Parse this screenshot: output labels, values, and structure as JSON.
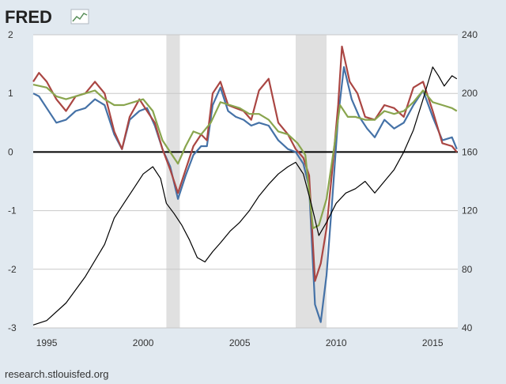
{
  "header": {
    "logo_text": "FRED"
  },
  "footer": {
    "source_text": "research.stlouisfed.org"
  },
  "colors": {
    "background": "#e1e9f0",
    "plot": "#ffffff",
    "gridline": "#c8c8c8",
    "recession": "#e0e0e0",
    "zero_line": "#000000"
  },
  "chart_data": {
    "type": "line",
    "title": "",
    "xlabel": "",
    "ylabel": "",
    "xlim": [
      1994.3,
      2016.3
    ],
    "ylim_left": [
      -3,
      2
    ],
    "ylim_right": [
      40,
      240
    ],
    "x_ticks": [
      1995,
      2000,
      2005,
      2010,
      2015
    ],
    "y_ticks_left": [
      2,
      1,
      0,
      -1,
      -2,
      -3
    ],
    "y_ticks_right": [
      240,
      200,
      160,
      120,
      80,
      40
    ],
    "grid": true,
    "recessions": [
      [
        2001.2,
        2001.9
      ],
      [
        2007.9,
        2009.5
      ]
    ],
    "series": [
      {
        "axis": "left",
        "color": "#4572a7",
        "points": [
          [
            1994.3,
            1.0
          ],
          [
            1994.6,
            0.95
          ],
          [
            1995,
            0.75
          ],
          [
            1995.5,
            0.5
          ],
          [
            1996,
            0.55
          ],
          [
            1996.5,
            0.7
          ],
          [
            1997,
            0.75
          ],
          [
            1997.5,
            0.9
          ],
          [
            1998,
            0.8
          ],
          [
            1998.5,
            0.3
          ],
          [
            1998.9,
            0.05
          ],
          [
            1999.3,
            0.55
          ],
          [
            1999.8,
            0.7
          ],
          [
            2000.2,
            0.75
          ],
          [
            2000.6,
            0.45
          ],
          [
            2001,
            0.05
          ],
          [
            2001.4,
            -0.25
          ],
          [
            2001.8,
            -0.8
          ],
          [
            2002.2,
            -0.4
          ],
          [
            2002.6,
            -0.05
          ],
          [
            2003,
            0.1
          ],
          [
            2003.3,
            0.1
          ],
          [
            2003.6,
            0.8
          ],
          [
            2004,
            1.1
          ],
          [
            2004.4,
            0.7
          ],
          [
            2004.8,
            0.6
          ],
          [
            2005.2,
            0.55
          ],
          [
            2005.6,
            0.45
          ],
          [
            2006,
            0.5
          ],
          [
            2006.5,
            0.45
          ],
          [
            2007,
            0.2
          ],
          [
            2007.5,
            0.05
          ],
          [
            2007.9,
            0.0
          ],
          [
            2008.3,
            -0.2
          ],
          [
            2008.6,
            -0.6
          ],
          [
            2008.9,
            -2.6
          ],
          [
            2009.2,
            -2.9
          ],
          [
            2009.5,
            -2.1
          ],
          [
            2009.8,
            -0.8
          ],
          [
            2010.1,
            0.6
          ],
          [
            2010.4,
            1.45
          ],
          [
            2010.8,
            0.9
          ],
          [
            2011.2,
            0.6
          ],
          [
            2011.6,
            0.4
          ],
          [
            2012,
            0.25
          ],
          [
            2012.5,
            0.55
          ],
          [
            2013,
            0.4
          ],
          [
            2013.5,
            0.5
          ],
          [
            2014,
            0.8
          ],
          [
            2014.5,
            1.05
          ],
          [
            2015,
            0.6
          ],
          [
            2015.5,
            0.2
          ],
          [
            2016,
            0.25
          ],
          [
            2016.25,
            0.05
          ]
        ]
      },
      {
        "axis": "left",
        "color": "#aa4643",
        "points": [
          [
            1994.3,
            1.2
          ],
          [
            1994.6,
            1.35
          ],
          [
            1995,
            1.2
          ],
          [
            1995.5,
            0.9
          ],
          [
            1996,
            0.7
          ],
          [
            1996.5,
            0.95
          ],
          [
            1997,
            1.0
          ],
          [
            1997.5,
            1.2
          ],
          [
            1998,
            1.0
          ],
          [
            1998.5,
            0.35
          ],
          [
            1998.9,
            0.05
          ],
          [
            1999.3,
            0.6
          ],
          [
            1999.8,
            0.9
          ],
          [
            2000.2,
            0.7
          ],
          [
            2000.6,
            0.5
          ],
          [
            2001,
            0.05
          ],
          [
            2001.4,
            -0.3
          ],
          [
            2001.8,
            -0.7
          ],
          [
            2002.2,
            -0.3
          ],
          [
            2002.6,
            0.1
          ],
          [
            2003,
            0.3
          ],
          [
            2003.3,
            0.2
          ],
          [
            2003.6,
            1.0
          ],
          [
            2004,
            1.2
          ],
          [
            2004.4,
            0.8
          ],
          [
            2004.8,
            0.75
          ],
          [
            2005.2,
            0.7
          ],
          [
            2005.6,
            0.55
          ],
          [
            2006,
            1.05
          ],
          [
            2006.5,
            1.25
          ],
          [
            2007,
            0.5
          ],
          [
            2007.5,
            0.3
          ],
          [
            2007.9,
            0.05
          ],
          [
            2008.3,
            -0.1
          ],
          [
            2008.6,
            -0.4
          ],
          [
            2008.9,
            -2.2
          ],
          [
            2009.2,
            -1.9
          ],
          [
            2009.5,
            -1.3
          ],
          [
            2009.8,
            -0.3
          ],
          [
            2010.1,
            0.8
          ],
          [
            2010.3,
            1.8
          ],
          [
            2010.7,
            1.2
          ],
          [
            2011.1,
            1.0
          ],
          [
            2011.5,
            0.6
          ],
          [
            2012,
            0.55
          ],
          [
            2012.5,
            0.8
          ],
          [
            2013,
            0.75
          ],
          [
            2013.5,
            0.6
          ],
          [
            2014,
            1.1
          ],
          [
            2014.5,
            1.2
          ],
          [
            2015,
            0.7
          ],
          [
            2015.5,
            0.15
          ],
          [
            2016,
            0.1
          ],
          [
            2016.25,
            0.0
          ]
        ]
      },
      {
        "axis": "left",
        "color": "#89a54e",
        "points": [
          [
            1994.3,
            1.15
          ],
          [
            1995,
            1.1
          ],
          [
            1995.5,
            0.95
          ],
          [
            1996,
            0.9
          ],
          [
            1996.5,
            0.95
          ],
          [
            1997,
            1.0
          ],
          [
            1997.5,
            1.05
          ],
          [
            1998,
            0.9
          ],
          [
            1998.5,
            0.8
          ],
          [
            1999,
            0.8
          ],
          [
            1999.5,
            0.85
          ],
          [
            2000,
            0.9
          ],
          [
            2000.5,
            0.7
          ],
          [
            2001,
            0.2
          ],
          [
            2001.5,
            -0.05
          ],
          [
            2001.8,
            -0.2
          ],
          [
            2002.2,
            0.1
          ],
          [
            2002.6,
            0.35
          ],
          [
            2003,
            0.3
          ],
          [
            2003.5,
            0.5
          ],
          [
            2004,
            0.85
          ],
          [
            2004.5,
            0.8
          ],
          [
            2005,
            0.75
          ],
          [
            2005.5,
            0.65
          ],
          [
            2006,
            0.65
          ],
          [
            2006.5,
            0.55
          ],
          [
            2007,
            0.35
          ],
          [
            2007.5,
            0.3
          ],
          [
            2008,
            0.15
          ],
          [
            2008.4,
            -0.05
          ],
          [
            2008.8,
            -1.3
          ],
          [
            2009.1,
            -1.25
          ],
          [
            2009.5,
            -0.8
          ],
          [
            2009.9,
            0.1
          ],
          [
            2010.2,
            0.8
          ],
          [
            2010.6,
            0.6
          ],
          [
            2011,
            0.6
          ],
          [
            2011.5,
            0.55
          ],
          [
            2012,
            0.55
          ],
          [
            2012.5,
            0.7
          ],
          [
            2013,
            0.65
          ],
          [
            2013.5,
            0.7
          ],
          [
            2014,
            0.85
          ],
          [
            2014.5,
            1.05
          ],
          [
            2015,
            0.85
          ],
          [
            2015.5,
            0.8
          ],
          [
            2016,
            0.75
          ],
          [
            2016.25,
            0.7
          ]
        ]
      },
      {
        "axis": "right",
        "color": "#000000",
        "points": [
          [
            1994.3,
            42
          ],
          [
            1995,
            45
          ],
          [
            1996,
            57
          ],
          [
            1997,
            75
          ],
          [
            1998,
            97
          ],
          [
            1998.5,
            115
          ],
          [
            1999,
            125
          ],
          [
            1999.5,
            135
          ],
          [
            2000,
            145
          ],
          [
            2000.5,
            150
          ],
          [
            2000.9,
            142
          ],
          [
            2001.2,
            125
          ],
          [
            2001.6,
            118
          ],
          [
            2002,
            110
          ],
          [
            2002.4,
            100
          ],
          [
            2002.8,
            88
          ],
          [
            2003.2,
            85
          ],
          [
            2003.6,
            92
          ],
          [
            2004,
            98
          ],
          [
            2004.5,
            106
          ],
          [
            2005,
            112
          ],
          [
            2005.5,
            120
          ],
          [
            2006,
            130
          ],
          [
            2006.5,
            138
          ],
          [
            2007,
            145
          ],
          [
            2007.5,
            150
          ],
          [
            2007.9,
            153
          ],
          [
            2008.3,
            145
          ],
          [
            2008.7,
            125
          ],
          [
            2009.1,
            103
          ],
          [
            2009.5,
            112
          ],
          [
            2010,
            125
          ],
          [
            2010.5,
            132
          ],
          [
            2011,
            135
          ],
          [
            2011.5,
            140
          ],
          [
            2012,
            132
          ],
          [
            2012.5,
            140
          ],
          [
            2013,
            148
          ],
          [
            2013.5,
            160
          ],
          [
            2014,
            175
          ],
          [
            2014.5,
            196
          ],
          [
            2015,
            218
          ],
          [
            2015.3,
            212
          ],
          [
            2015.6,
            205
          ],
          [
            2016,
            212
          ],
          [
            2016.25,
            210
          ]
        ]
      }
    ]
  }
}
